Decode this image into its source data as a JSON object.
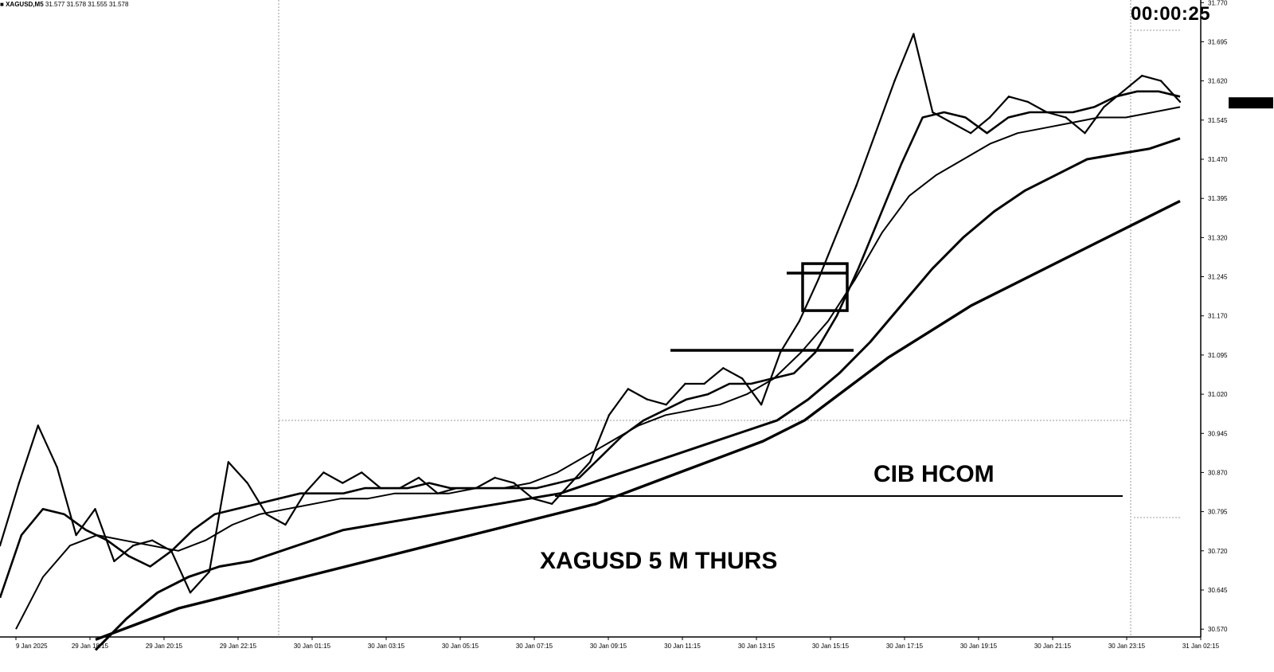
{
  "header": {
    "symbol_label": "XAGUSD,M5",
    "ohlc_values": "31.577 31.578 31.555 31.578",
    "countdown": "00:00:25"
  },
  "annotations": {
    "pattern_label": "CIB  HCOM",
    "chart_label": "XAGUSD 5 M   THURS"
  },
  "colors": {
    "background": "#ffffff",
    "price": "#000000",
    "grid": "#999999"
  },
  "chart_data": {
    "type": "line",
    "title": "",
    "symbol": "XAGUSD",
    "timeframe": "M5",
    "xlabel": "",
    "ylabel": "",
    "x_ticks": [
      "9 Jan 2025",
      "29 Jan 18:15",
      "29 Jan 20:15",
      "29 Jan 22:15",
      "30 Jan 01:15",
      "30 Jan 03:15",
      "30 Jan 05:15",
      "30 Jan 07:15",
      "30 Jan 09:15",
      "30 Jan 11:15",
      "30 Jan 13:15",
      "30 Jan 15:15",
      "30 Jan 17:15",
      "30 Jan 19:15",
      "30 Jan 21:15",
      "30 Jan 23:15",
      "31 Jan 02:15"
    ],
    "y_ticks": [
      30.57,
      30.645,
      30.72,
      30.795,
      30.87,
      30.945,
      31.02,
      31.095,
      31.17,
      31.245,
      31.32,
      31.395,
      31.47,
      31.545,
      31.62,
      31.695,
      31.77
    ],
    "ylim": [
      30.555,
      31.775
    ],
    "current_price": 31.578,
    "grid": false,
    "series": [
      {
        "values": [
          30.73,
          30.85,
          30.96,
          30.88,
          30.75,
          30.8,
          30.7,
          30.73,
          30.74,
          30.72,
          30.64,
          30.68,
          30.89,
          30.85,
          30.79,
          30.77,
          30.83,
          30.87,
          30.85,
          30.87,
          30.84,
          30.84,
          30.86,
          30.83,
          30.84,
          30.84,
          30.86,
          30.85,
          30.82,
          30.81,
          30.85,
          30.89,
          30.98,
          31.03,
          31.01,
          31.0,
          31.04,
          31.04,
          31.07,
          31.05,
          31.0,
          31.1,
          31.16,
          31.24,
          31.33,
          31.42,
          31.52,
          31.62,
          31.71,
          31.56,
          31.54,
          31.52,
          31.55,
          31.59,
          31.58,
          31.56,
          31.55,
          31.52,
          31.57,
          31.6,
          31.63,
          31.62,
          31.58
        ]
      },
      {
        "values": [
          30.63,
          30.75,
          30.8,
          30.79,
          30.76,
          30.74,
          30.71,
          30.69,
          30.72,
          30.76,
          30.79,
          30.8,
          30.81,
          30.82,
          30.83,
          30.83,
          30.83,
          30.84,
          30.84,
          30.84,
          30.85,
          30.84,
          30.84,
          30.84,
          30.84,
          30.84,
          30.85,
          30.86,
          30.9,
          30.94,
          30.97,
          30.99,
          31.01,
          31.02,
          31.04,
          31.04,
          31.05,
          31.06,
          31.1,
          31.17,
          31.26,
          31.36,
          31.46,
          31.55,
          31.56,
          31.55,
          31.52,
          31.55,
          31.56,
          31.56,
          31.56,
          31.57,
          31.59,
          31.6,
          31.6,
          31.59
        ]
      },
      {
        "values": [
          30.57,
          30.67,
          30.73,
          30.75,
          30.74,
          30.73,
          30.72,
          30.74,
          30.77,
          30.79,
          30.8,
          30.81,
          30.82,
          30.82,
          30.83,
          30.83,
          30.83,
          30.84,
          30.84,
          30.85,
          30.87,
          30.9,
          30.93,
          30.96,
          30.98,
          30.99,
          31.0,
          31.02,
          31.05,
          31.1,
          31.16,
          31.24,
          31.33,
          31.4,
          31.44,
          31.47,
          31.5,
          31.52,
          31.53,
          31.54,
          31.55,
          31.55,
          31.56,
          31.57
        ]
      },
      {
        "values": [
          30.53,
          30.59,
          30.64,
          30.67,
          30.69,
          30.7,
          30.72,
          30.74,
          30.76,
          30.77,
          30.78,
          30.79,
          30.8,
          30.81,
          30.82,
          30.83,
          30.85,
          30.87,
          30.89,
          30.91,
          30.93,
          30.95,
          30.97,
          31.01,
          31.06,
          31.12,
          31.19,
          31.26,
          31.32,
          31.37,
          31.41,
          31.44,
          31.47,
          31.48,
          31.49,
          31.51
        ]
      },
      {
        "values": [
          30.55,
          30.58,
          30.61,
          30.63,
          30.65,
          30.67,
          30.69,
          30.71,
          30.73,
          30.75,
          30.77,
          30.79,
          30.81,
          30.84,
          30.87,
          30.9,
          30.93,
          30.97,
          31.03,
          31.09,
          31.14,
          31.19,
          31.23,
          31.27,
          31.31,
          31.35,
          31.39
        ]
      }
    ],
    "levels": [
      {
        "kind": "line",
        "y": 30.825
      },
      {
        "kind": "line",
        "y": 31.104
      },
      {
        "kind": "line",
        "y": 31.252
      },
      {
        "kind": "box",
        "y_low": 31.18,
        "y_high": 31.27
      }
    ]
  }
}
